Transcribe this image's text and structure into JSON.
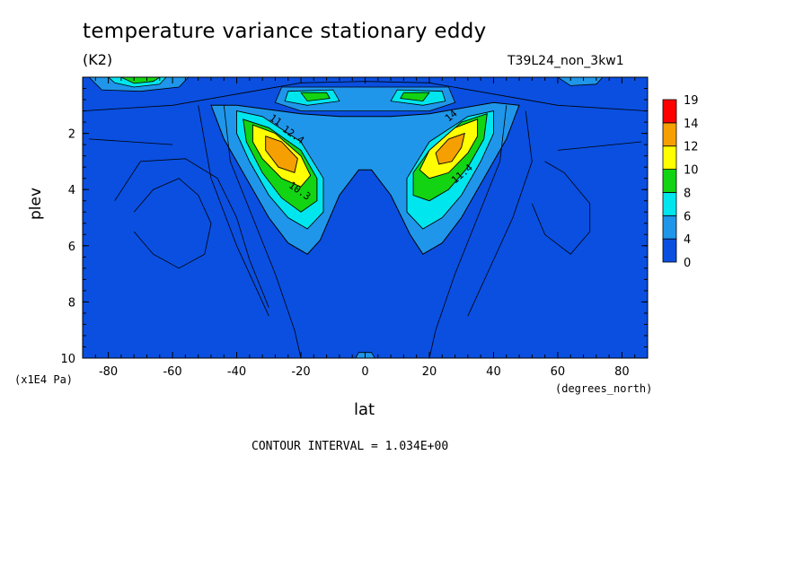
{
  "chart_data": {
    "type": "heatmap",
    "title": "temperature variance stationary eddy",
    "units": "(K2)",
    "run_label": "T39L24_non_3kw1",
    "xlabel": "lat",
    "x_units": "(degrees_north)",
    "ylabel": "plev",
    "y_units": "(x1E4 Pa)",
    "contour_interval_text": "CONTOUR INTERVAL = 1.034E+00",
    "xlim": [
      -88,
      88
    ],
    "ylim": [
      0,
      10
    ],
    "x_ticks": [
      -80,
      -60,
      -40,
      -20,
      0,
      20,
      40,
      60,
      80
    ],
    "y_ticks": [
      2,
      4,
      6,
      8,
      10
    ],
    "colorbar": {
      "levels": [
        0,
        4,
        6,
        8,
        10,
        12,
        14,
        19
      ],
      "colors": [
        "#0a4fe0",
        "#1f96ea",
        "#00e6ee",
        "#12d412",
        "#ffff00",
        "#f5a000",
        "#ff0000"
      ]
    },
    "features": [
      {
        "name": "SH mid-latitude maximum",
        "lat": -25,
        "plev": 2.8,
        "value": 13
      },
      {
        "name": "NH mid-latitude maximum",
        "lat": 25,
        "plev": 2.8,
        "value": 12
      },
      {
        "name": "upper equatorial lobes",
        "lat": [
          -18,
          18
        ],
        "plev": 0.7,
        "value": 8
      },
      {
        "name": "SH polar top",
        "lat": -70,
        "plev": 0.2,
        "value": 8
      }
    ],
    "contour_labels": [
      "10.3",
      "11",
      "12.4",
      "14",
      "11.4"
    ]
  }
}
